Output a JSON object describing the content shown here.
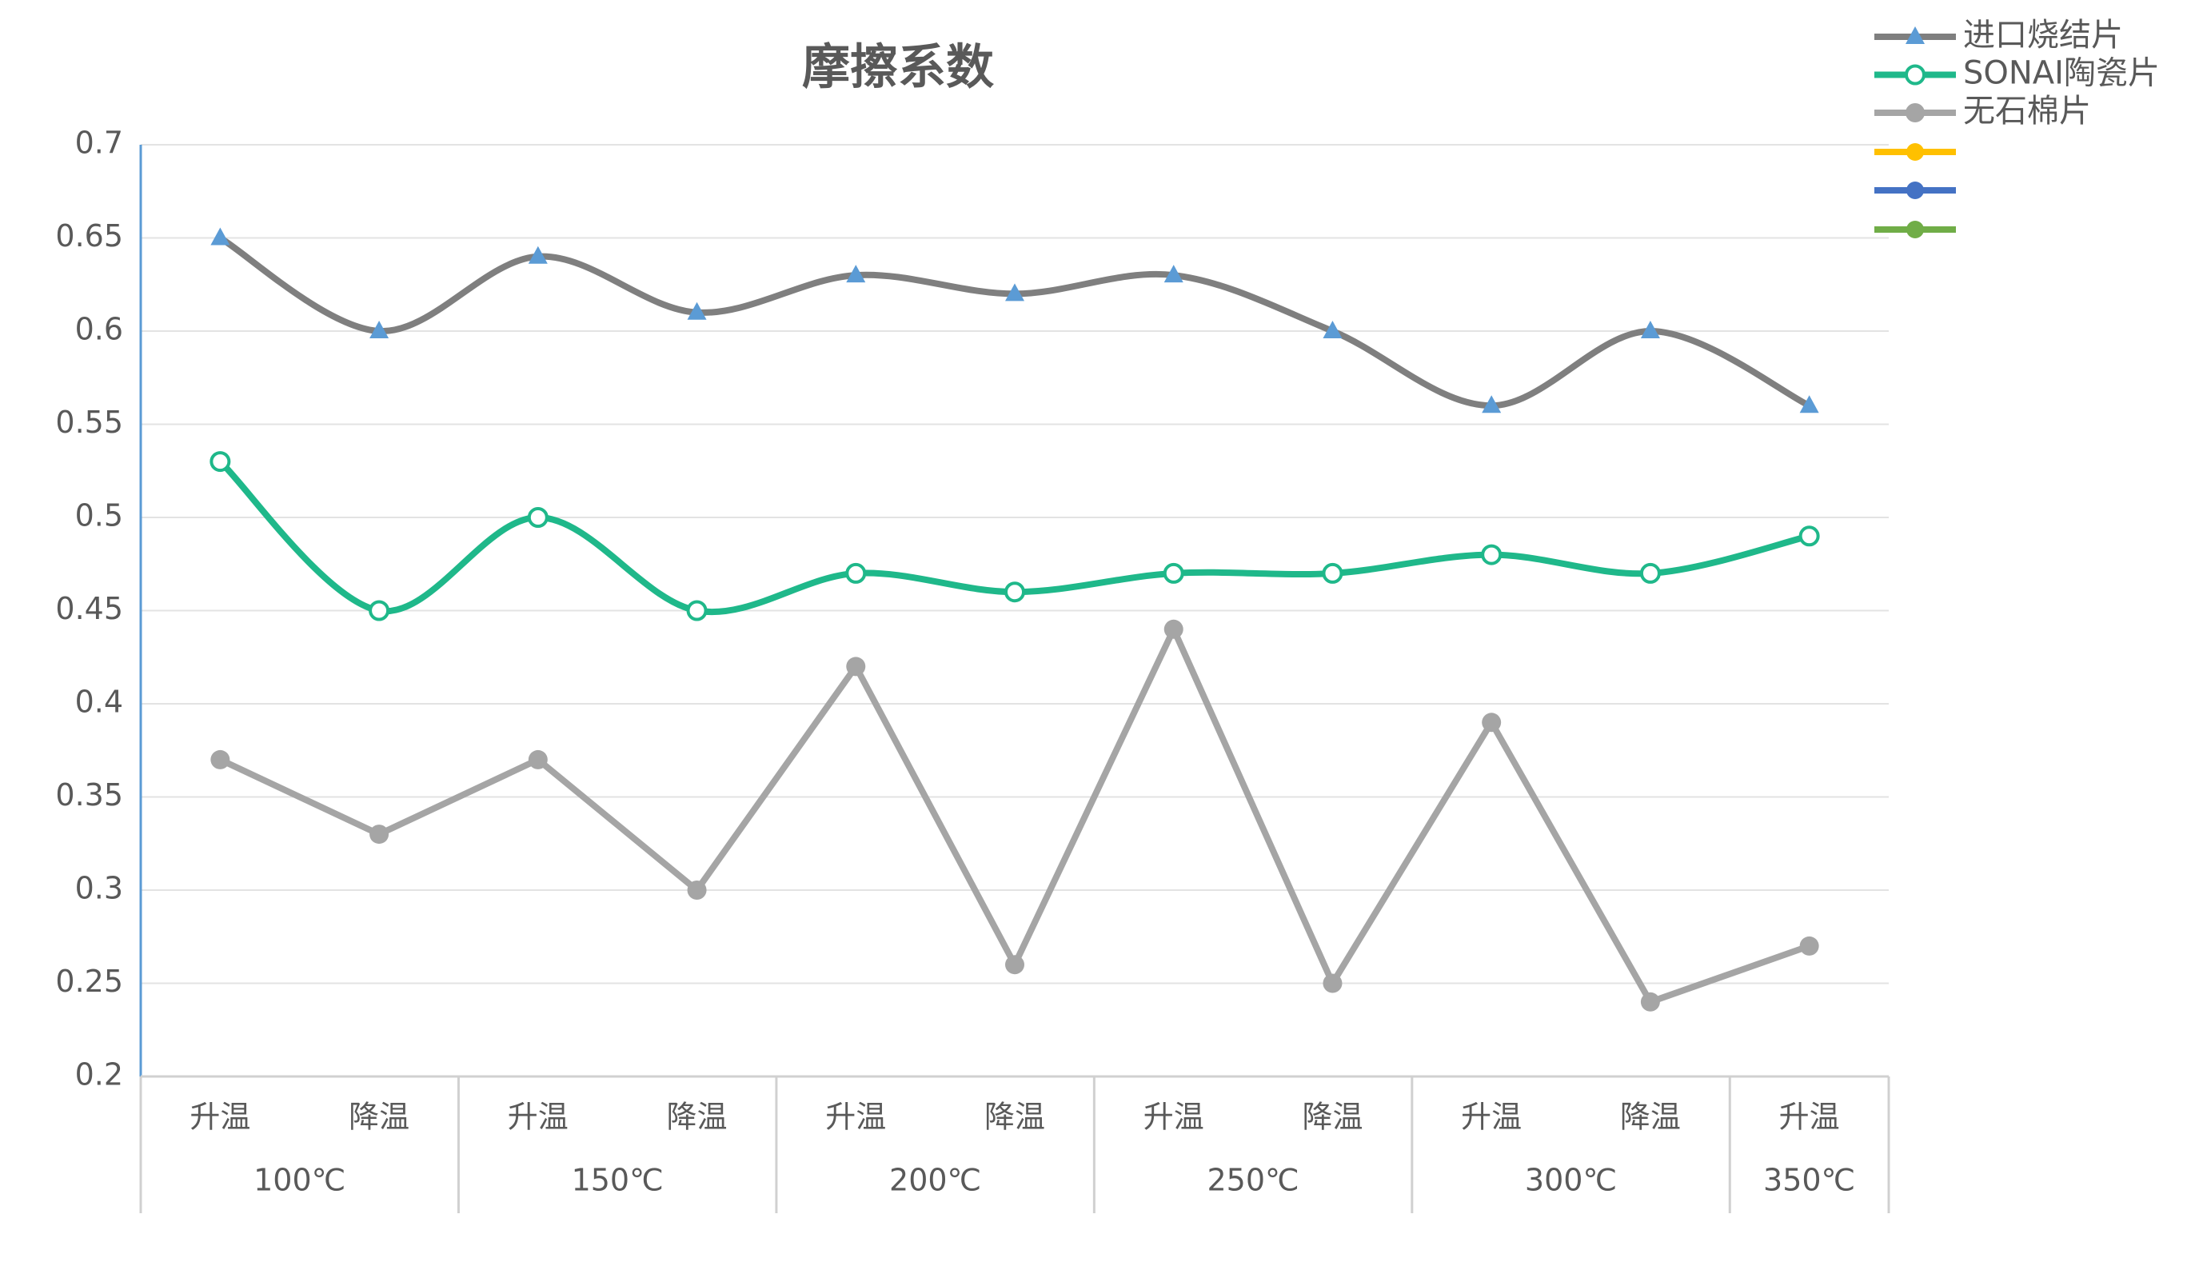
{
  "chart_data": {
    "type": "line",
    "title": "摩擦系数",
    "categories": [
      "升温",
      "降温",
      "升温",
      "降温",
      "升温",
      "降温",
      "升温",
      "降温",
      "升温",
      "降温",
      "升温"
    ],
    "groups": [
      "100℃",
      null,
      "150℃",
      null,
      "200℃",
      null,
      "250℃",
      null,
      "300℃",
      null,
      "350℃"
    ],
    "series": [
      {
        "name": "进口烧结片",
        "color": "#7f7f7f",
        "marker": "triangle",
        "marker_color": "#5b9bd5",
        "smooth": true,
        "values": [
          0.65,
          0.6,
          0.64,
          0.61,
          0.63,
          0.62,
          0.63,
          0.6,
          0.56,
          0.6,
          0.56
        ]
      },
      {
        "name": "SONAI陶瓷片",
        "color": "#1fb88a",
        "marker": "circle-open",
        "marker_color": "#1fb88a",
        "smooth": true,
        "values": [
          0.53,
          0.45,
          0.5,
          0.45,
          0.47,
          0.46,
          0.47,
          0.47,
          0.48,
          0.47,
          0.49
        ]
      },
      {
        "name": "无石棉片",
        "color": "#a5a5a5",
        "marker": "circle",
        "marker_color": "#a5a5a5",
        "smooth": false,
        "values": [
          0.37,
          0.33,
          0.37,
          0.3,
          0.42,
          0.26,
          0.44,
          0.25,
          0.39,
          0.24,
          0.27
        ]
      }
    ],
    "ylim": [
      0.2,
      0.7
    ],
    "yticks": [
      0.2,
      0.25,
      0.3,
      0.35,
      0.4,
      0.45,
      0.5,
      0.55,
      0.6,
      0.65,
      0.7
    ],
    "grid": true,
    "legend": "top-right"
  }
}
